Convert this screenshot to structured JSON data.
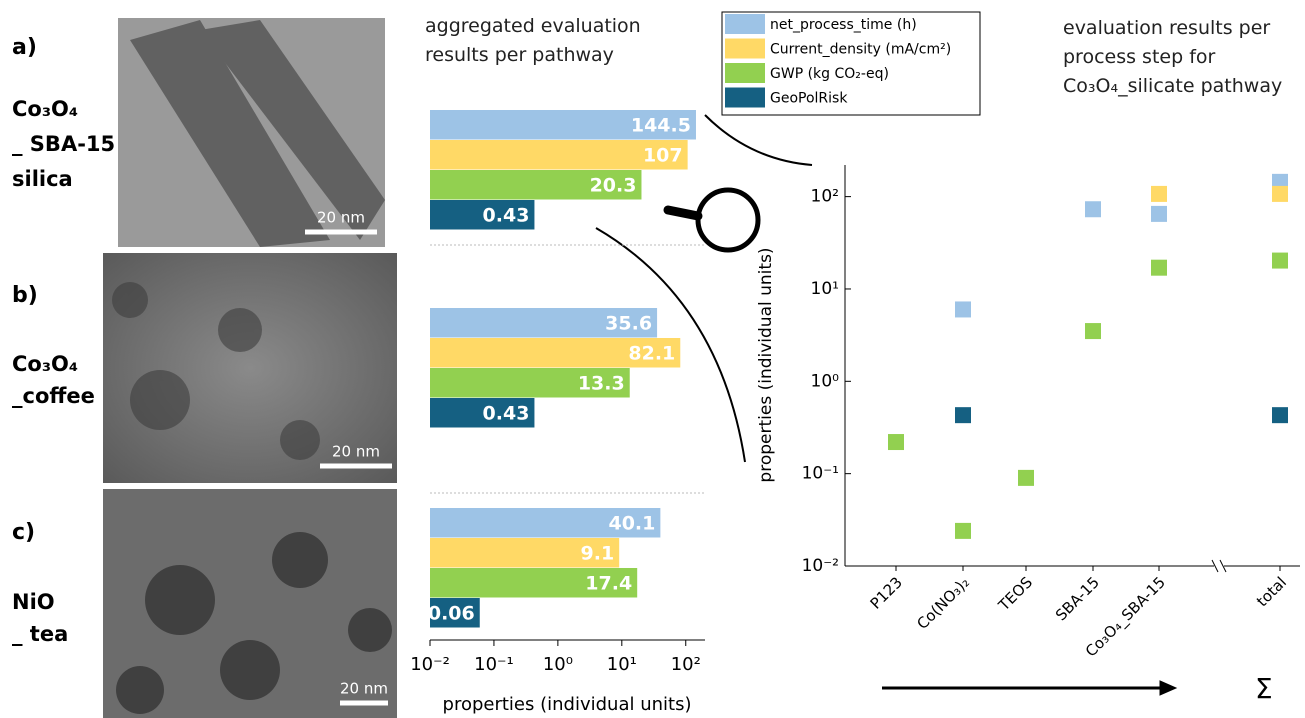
{
  "panels": [
    {
      "label": "a)",
      "name": [
        "Co₃O₄",
        "_ SBA-15",
        "silica"
      ],
      "scale_bar": "20 nm"
    },
    {
      "label": "b)",
      "name": [
        "Co₃O₄",
        "_coffee"
      ],
      "scale_bar": "20 nm"
    },
    {
      "label": "c)",
      "name": [
        "NiO",
        "_ tea"
      ],
      "scale_bar": "20 nm"
    }
  ],
  "sum_symbol": "Σ",
  "chart_data": [
    {
      "type": "bar",
      "orientation": "horizontal",
      "title": "aggregated evaluation results per pathway",
      "xlabel": "properties (individual units)",
      "categories": [
        null,
        null,
        null
      ],
      "xscale": "log",
      "xlim": [
        0.01,
        200
      ],
      "xticks": [
        {
          "value": 0.01,
          "label": "10⁻²"
        },
        {
          "value": 0.1,
          "label": "10⁻¹"
        },
        {
          "value": 1,
          "label": "10⁰"
        },
        {
          "value": 10,
          "label": "10¹"
        },
        {
          "value": 100,
          "label": "10²"
        }
      ],
      "legend": "top",
      "series": [
        {
          "name": "net_process_time (h)",
          "color": "#9dc3e6",
          "values": [
            144.5,
            35.6,
            40.1
          ]
        },
        {
          "name": "Current_density (mA/cm²)",
          "color": "#ffd966",
          "values": [
            107,
            82.1,
            9.1
          ]
        },
        {
          "name": "GWP (kg CO₂-eq)",
          "color": "#92d050",
          "values": [
            20.3,
            13.3,
            17.4
          ]
        },
        {
          "name": "GeoPolRisk",
          "color": "#156082",
          "values": [
            0.43,
            0.43,
            0.06
          ]
        }
      ]
    },
    {
      "type": "scatter",
      "title": "evaluation results per process step for Co₃O₄_silicate pathway",
      "ylabel": "properties (individual units)",
      "categories": [
        "P123",
        "Co(NO₃)₂",
        "TEOS",
        "SBA-15",
        "Co₃O₄_SBA-15",
        "total"
      ],
      "yscale": "log",
      "ylim": [
        0.01,
        220
      ],
      "yticks": [
        {
          "value": 0.01,
          "label": "10⁻²"
        },
        {
          "value": 0.1,
          "label": "10⁻¹"
        },
        {
          "value": 1,
          "label": "10⁰"
        },
        {
          "value": 10,
          "label": "10¹"
        },
        {
          "value": 100,
          "label": "10²"
        }
      ],
      "series": [
        {
          "name": "net_process_time (h)",
          "color": "#9dc3e6",
          "values": [
            null,
            6,
            null,
            73,
            65,
            144.5
          ]
        },
        {
          "name": "Current_density (mA/cm²)",
          "color": "#ffd966",
          "values": [
            null,
            null,
            null,
            null,
            107,
            107
          ]
        },
        {
          "name": "GWP (kg CO₂-eq)",
          "color": "#92d050",
          "values": [
            0.22,
            0.024,
            0.09,
            3.5,
            17,
            20.3
          ]
        },
        {
          "name": "GeoPolRisk",
          "color": "#156082",
          "values": [
            null,
            0.43,
            null,
            null,
            null,
            0.43
          ]
        }
      ]
    }
  ]
}
